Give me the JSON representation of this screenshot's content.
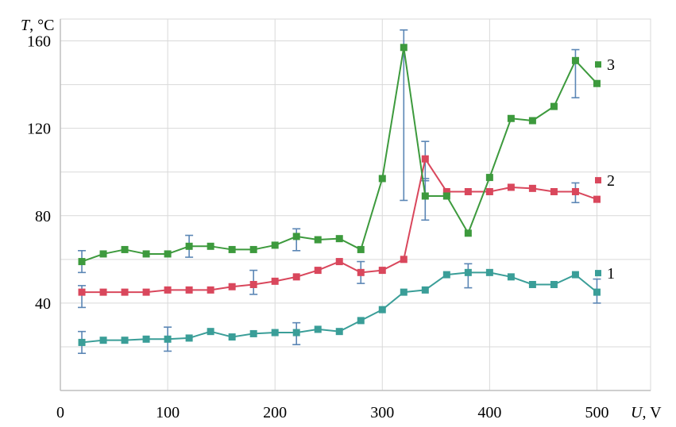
{
  "chart_data": {
    "type": "line",
    "ylabel_var": "T",
    "ylabel_unit": ", °C",
    "xlabel_var": "U",
    "xlabel_unit": ", V",
    "xlim": [
      0,
      550
    ],
    "ylim": [
      0,
      170
    ],
    "x_ticks": [
      "0",
      "100",
      "200",
      "300",
      "400",
      "500"
    ],
    "y_ticks": [
      "40",
      "80",
      "120",
      "160"
    ],
    "x_tick_values": [
      0,
      100,
      200,
      300,
      400,
      500
    ],
    "y_tick_values": [
      40,
      80,
      120,
      160
    ],
    "grid": true,
    "legend": "right",
    "x": [
      20,
      40,
      60,
      80,
      100,
      120,
      140,
      160,
      180,
      200,
      220,
      240,
      260,
      280,
      300,
      320,
      340,
      360,
      380,
      400,
      420,
      440,
      460,
      480,
      500
    ],
    "series": [
      {
        "name": "1",
        "color": "#3a9e98",
        "values": [
          22,
          23,
          23,
          23.5,
          23.5,
          24,
          27,
          24.5,
          26,
          26.5,
          26.5,
          28,
          27,
          32,
          37,
          45,
          46,
          53,
          54,
          54,
          52,
          48.5,
          48.5,
          53,
          45
        ],
        "errors": [
          {
            "x": 20,
            "low": 17,
            "high": 27
          },
          {
            "x": 100,
            "low": 18,
            "high": 29
          },
          {
            "x": 220,
            "low": 21,
            "high": 31
          },
          {
            "x": 380,
            "low": 47,
            "high": 58
          },
          {
            "x": 500,
            "low": 40,
            "high": 51
          }
        ]
      },
      {
        "name": "2",
        "color": "#d9475c",
        "values": [
          45,
          45,
          45,
          45,
          46,
          46,
          46,
          47.5,
          48.5,
          50,
          52,
          55,
          59,
          54,
          55,
          60,
          106,
          91,
          91,
          91,
          93,
          92.5,
          91,
          91,
          87.5
        ],
        "errors": [
          {
            "x": 20,
            "low": 38,
            "high": 48
          },
          {
            "x": 180,
            "low": 44,
            "high": 55
          },
          {
            "x": 280,
            "low": 49,
            "high": 59
          },
          {
            "x": 340,
            "low": 96,
            "high": 114
          },
          {
            "x": 480,
            "low": 86,
            "high": 95
          }
        ]
      },
      {
        "name": "3",
        "color": "#3d9a3d",
        "values": [
          59,
          62.5,
          64.5,
          62.5,
          62.5,
          66,
          66,
          64.5,
          64.5,
          66.5,
          70.5,
          69,
          69.5,
          64.5,
          97,
          157,
          89,
          89,
          72,
          97.5,
          124.5,
          123.5,
          130,
          151,
          140.5
        ],
        "errors": [
          {
            "x": 20,
            "low": 54,
            "high": 64
          },
          {
            "x": 120,
            "low": 61,
            "high": 71
          },
          {
            "x": 220,
            "low": 64,
            "high": 74
          },
          {
            "x": 320,
            "low": 87,
            "high": 165
          },
          {
            "x": 340,
            "low": 78,
            "high": 97
          },
          {
            "x": 480,
            "low": 134,
            "high": 156
          }
        ]
      }
    ]
  }
}
